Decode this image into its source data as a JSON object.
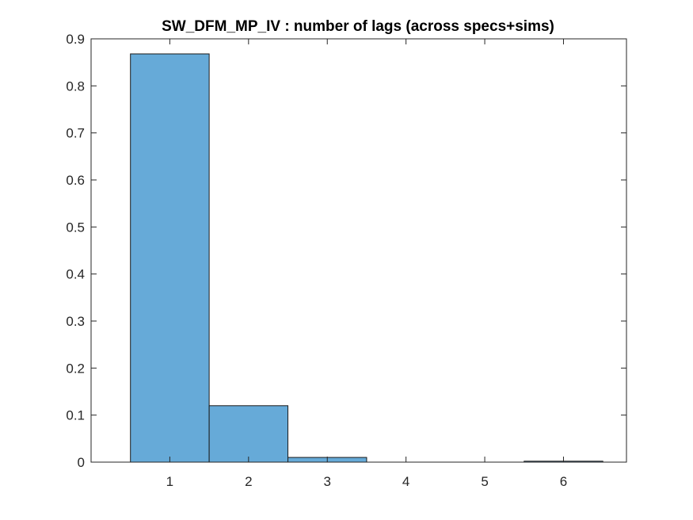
{
  "chart_data": {
    "type": "bar",
    "title": "SW_DFM_MP_IV : number of lags (across specs+sims)",
    "xlabel": "",
    "ylabel": "",
    "categories": [
      "1",
      "2",
      "3",
      "4",
      "5",
      "6"
    ],
    "values": [
      0.868,
      0.12,
      0.01,
      0.0,
      0.0,
      0.002
    ],
    "xlim": [
      0,
      6.8
    ],
    "ylim": [
      0,
      0.9
    ],
    "yticks": [
      "0",
      "0.1",
      "0.2",
      "0.3",
      "0.4",
      "0.5",
      "0.6",
      "0.7",
      "0.8",
      "0.9"
    ],
    "xticks": [
      "1",
      "2",
      "3",
      "4",
      "5",
      "6"
    ],
    "grid": false,
    "legend": "none",
    "bar_color": "#66aad8",
    "bar_edge_color": "#1a1a1a"
  }
}
